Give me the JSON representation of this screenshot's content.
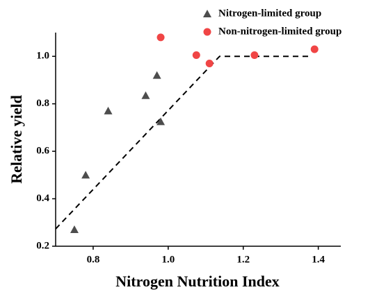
{
  "chart_data": {
    "type": "scatter",
    "xlabel": "Nitrogen Nutrition Index",
    "ylabel": "Relative yield",
    "xlim": [
      0.7,
      1.46
    ],
    "ylim": [
      0.2,
      1.1
    ],
    "xticks": [
      0.8,
      {
        "value": 1.0,
        "label": "1.0"
      },
      1.2,
      1.4
    ],
    "yticks": [
      0.2,
      0.4,
      0.6,
      0.8,
      {
        "value": 1.0,
        "label": "1.0"
      }
    ],
    "series": [
      {
        "name": "Nitrogen-limited group",
        "color": "#4d4d4d",
        "marker": "triangle",
        "x": [
          0.75,
          0.78,
          0.84,
          0.94,
          0.97,
          0.98
        ],
        "values": [
          0.27,
          0.5,
          0.77,
          0.835,
          0.92,
          0.725
        ]
      },
      {
        "name": "Non-nitrogen-limited group",
        "color": "#f04545",
        "marker": "circle",
        "x": [
          0.98,
          1.075,
          1.11,
          1.23,
          1.39
        ],
        "values": [
          1.08,
          1.005,
          0.97,
          1.005,
          1.03
        ]
      }
    ],
    "reference_line": {
      "color": "#000000",
      "x": [
        0.7,
        1.137,
        1.38
      ],
      "values": [
        0.273,
        1.0,
        1.0
      ]
    },
    "legend": "upper right"
  }
}
